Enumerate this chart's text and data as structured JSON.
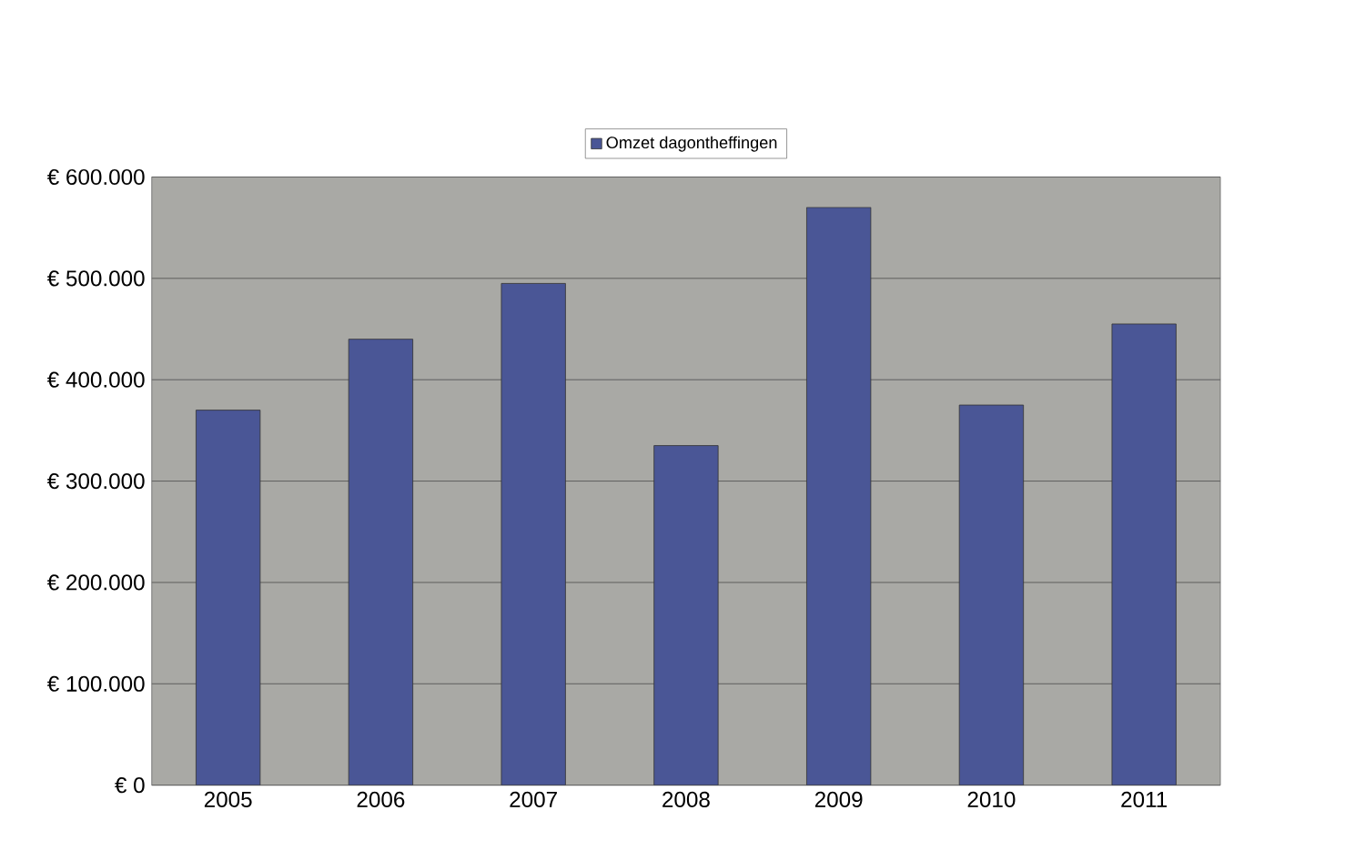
{
  "chart_data": {
    "type": "bar",
    "categories": [
      "2005",
      "2006",
      "2007",
      "2008",
      "2009",
      "2010",
      "2011"
    ],
    "series": [
      {
        "name": "Omzet dagontheffingen",
        "color": "#4a5696",
        "values": [
          370000,
          440000,
          495000,
          335000,
          570000,
          375000,
          455000
        ]
      }
    ],
    "ylim": [
      0,
      600000
    ],
    "yticks": [
      {
        "value": 0,
        "label": "€ 0"
      },
      {
        "value": 100000,
        "label": "€ 100.000"
      },
      {
        "value": 200000,
        "label": "€ 200.000"
      },
      {
        "value": 300000,
        "label": "€ 300.000"
      },
      {
        "value": 400000,
        "label": "€ 400.000"
      },
      {
        "value": 500000,
        "label": "€ 500.000"
      },
      {
        "value": 600000,
        "label": "€ 600.000"
      }
    ],
    "grid": "y",
    "legend": "top"
  }
}
